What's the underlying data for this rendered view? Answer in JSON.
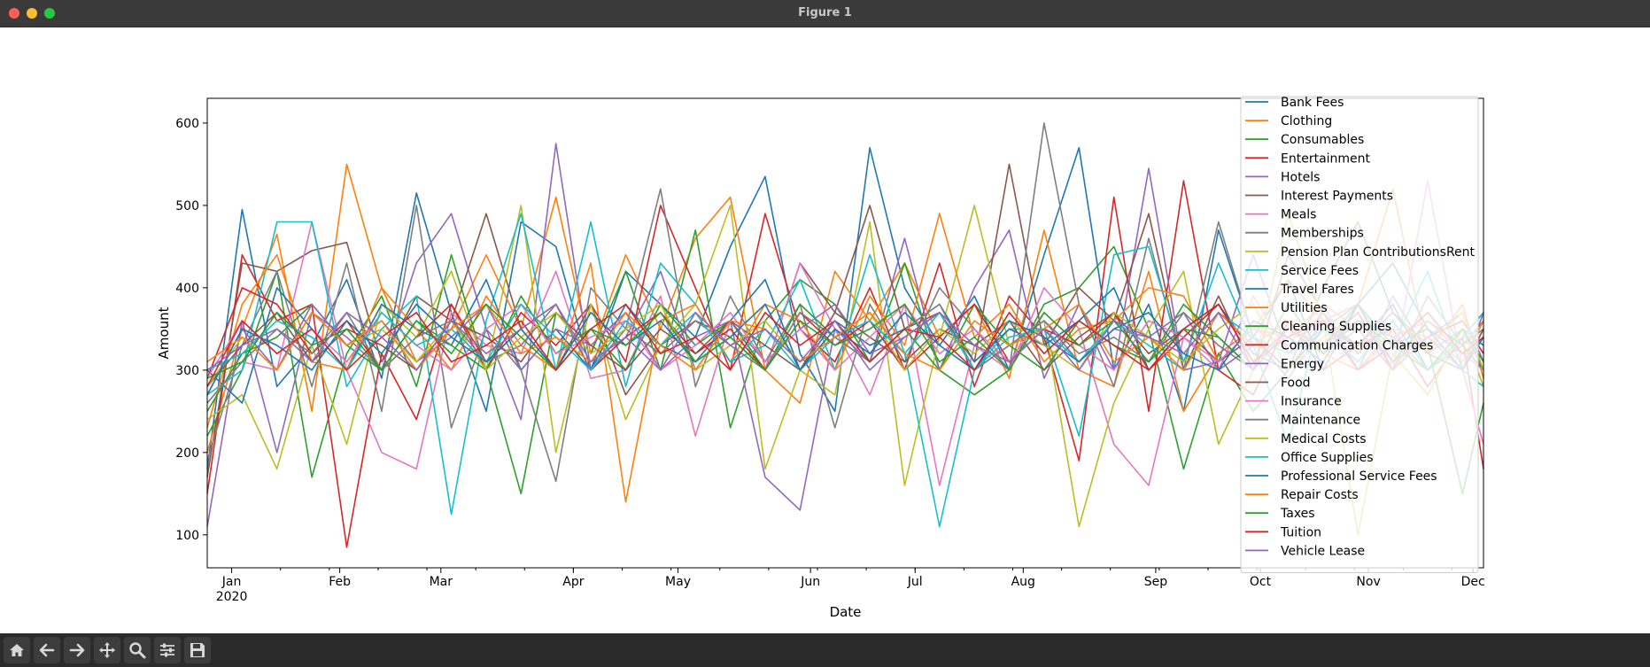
{
  "window": {
    "title": "Figure 1"
  },
  "toolbar": {
    "buttons": [
      {
        "name": "home-button",
        "icon": "home-icon"
      },
      {
        "name": "back-button",
        "icon": "arrow-left-icon"
      },
      {
        "name": "forward-button",
        "icon": "arrow-right-icon"
      },
      {
        "name": "pan-button",
        "icon": "move-icon"
      },
      {
        "name": "zoom-button",
        "icon": "magnifier-icon"
      },
      {
        "name": "configure-subplots-button",
        "icon": "sliders-icon"
      },
      {
        "name": "save-button",
        "icon": "floppy-icon"
      }
    ]
  },
  "chart_data": {
    "type": "line",
    "title": "",
    "xlabel": "Date",
    "ylabel": "Amount",
    "ylim": [
      60,
      630
    ],
    "xlim": [
      "2019-12-29",
      "2020-12-29"
    ],
    "yticks": [
      100,
      200,
      300,
      400,
      500,
      600
    ],
    "xticks": [
      {
        "date": "2020-01-05",
        "label": "Jan",
        "sublabel": "2020"
      },
      {
        "date": "2020-02-05",
        "label": "Feb"
      },
      {
        "date": "2020-03-05",
        "label": "Mar"
      },
      {
        "date": "2020-04-12",
        "label": "Apr"
      },
      {
        "date": "2020-05-12",
        "label": "May"
      },
      {
        "date": "2020-06-19",
        "label": "Jun"
      },
      {
        "date": "2020-07-19",
        "label": "Jul"
      },
      {
        "date": "2020-08-19",
        "label": "Aug"
      },
      {
        "date": "2020-09-26",
        "label": "Sep"
      },
      {
        "date": "2020-10-26",
        "label": "Oct"
      },
      {
        "date": "2020-11-26",
        "label": "Nov"
      },
      {
        "date": "2020-12-26",
        "label": "Dec"
      }
    ],
    "grid": false,
    "legend": "upper right",
    "x": [
      "2019-12-29",
      "2020-01-08",
      "2020-01-18",
      "2020-01-28",
      "2020-02-07",
      "2020-02-17",
      "2020-02-27",
      "2020-03-08",
      "2020-03-18",
      "2020-03-28",
      "2020-04-07",
      "2020-04-17",
      "2020-04-27",
      "2020-05-07",
      "2020-05-17",
      "2020-05-27",
      "2020-06-06",
      "2020-06-16",
      "2020-06-26",
      "2020-07-06",
      "2020-07-16",
      "2020-07-26",
      "2020-08-05",
      "2020-08-15",
      "2020-08-25",
      "2020-09-04",
      "2020-09-14",
      "2020-09-24",
      "2020-10-04",
      "2020-10-14",
      "2020-10-24",
      "2020-11-03",
      "2020-11-13",
      "2020-11-23",
      "2020-12-03",
      "2020-12-13",
      "2020-12-23",
      "2020-12-29"
    ],
    "series": [
      {
        "name": "Bank Fees",
        "color": "#1f77b4",
        "values": [
          180,
          495,
          280,
          330,
          410,
          290,
          515,
          370,
          250,
          480,
          450,
          300,
          420,
          380,
          340,
          450,
          535,
          320,
          250,
          570,
          400,
          330,
          390,
          300,
          440,
          570,
          300,
          380,
          250,
          470,
          340,
          410,
          300,
          380,
          430,
          350,
          320,
          300
        ]
      },
      {
        "name": "Clothing",
        "color": "#ff7f0e",
        "values": [
          200,
          350,
          465,
          250,
          550,
          400,
          310,
          350,
          440,
          350,
          510,
          320,
          440,
          350,
          460,
          510,
          300,
          260,
          420,
          360,
          430,
          340,
          380,
          290,
          470,
          300,
          280,
          420,
          250,
          320,
          350,
          410,
          360,
          380,
          520,
          320,
          380,
          290
        ]
      },
      {
        "name": "Consumables",
        "color": "#2ca02c",
        "values": [
          220,
          300,
          420,
          170,
          320,
          390,
          280,
          440,
          300,
          150,
          370,
          320,
          420,
          300,
          470,
          230,
          360,
          410,
          380,
          310,
          430,
          300,
          270,
          300,
          380,
          400,
          450,
          350,
          180,
          320,
          250,
          300,
          400,
          480,
          370,
          330,
          150,
          260
        ]
      },
      {
        "name": "Entertainment",
        "color": "#d62728",
        "values": [
          150,
          440,
          360,
          380,
          85,
          320,
          240,
          380,
          300,
          370,
          330,
          380,
          310,
          500,
          400,
          300,
          490,
          350,
          310,
          400,
          300,
          430,
          280,
          390,
          340,
          190,
          510,
          250,
          530,
          300,
          270,
          360,
          300,
          330,
          350,
          280,
          340,
          180
        ]
      },
      {
        "name": "Hotels",
        "color": "#9467bd",
        "values": [
          110,
          360,
          200,
          370,
          340,
          300,
          430,
          490,
          350,
          240,
          575,
          300,
          340,
          420,
          300,
          360,
          170,
          130,
          350,
          310,
          460,
          300,
          400,
          470,
          290,
          380,
          300,
          545,
          300,
          310,
          440,
          320,
          370,
          300,
          390,
          320,
          350,
          300
        ]
      },
      {
        "name": "Interest Payments",
        "color": "#8c564b",
        "values": [
          170,
          430,
          420,
          445,
          455,
          310,
          390,
          360,
          490,
          350,
          300,
          380,
          270,
          330,
          360,
          340,
          300,
          430,
          370,
          500,
          350,
          370,
          310,
          550,
          330,
          400,
          360,
          490,
          300,
          390,
          300,
          440,
          370,
          320,
          360,
          300,
          340,
          370
        ]
      },
      {
        "name": "Meals",
        "color": "#e377c2",
        "values": [
          260,
          310,
          300,
          480,
          300,
          200,
          180,
          370,
          330,
          320,
          420,
          290,
          300,
          390,
          220,
          360,
          300,
          430,
          350,
          270,
          380,
          160,
          330,
          300,
          400,
          350,
          210,
          160,
          340,
          300,
          390,
          320,
          360,
          380,
          300,
          530,
          300,
          210
        ]
      },
      {
        "name": "Memberships",
        "color": "#7f7f7f",
        "values": [
          190,
          330,
          420,
          280,
          430,
          250,
          500,
          230,
          350,
          300,
          165,
          400,
          350,
          520,
          280,
          390,
          310,
          380,
          230,
          380,
          310,
          400,
          350,
          300,
          600,
          380,
          280,
          460,
          300,
          480,
          340,
          290,
          350,
          380,
          300,
          390,
          330,
          350
        ]
      },
      {
        "name": "Pension Plan ContributionsRent",
        "color": "#bcbd22",
        "values": [
          240,
          270,
          180,
          330,
          210,
          380,
          340,
          420,
          300,
          500,
          200,
          380,
          240,
          330,
          380,
          500,
          180,
          300,
          270,
          480,
          160,
          340,
          500,
          330,
          360,
          110,
          260,
          350,
          420,
          210,
          300,
          490,
          360,
          100,
          320,
          270,
          350,
          280
        ]
      },
      {
        "name": "Service Fees",
        "color": "#17becf",
        "values": [
          270,
          300,
          480,
          480,
          280,
          350,
          390,
          125,
          360,
          490,
          300,
          480,
          280,
          430,
          380,
          310,
          330,
          410,
          300,
          440,
          320,
          110,
          300,
          350,
          350,
          220,
          440,
          450,
          310,
          430,
          330,
          210,
          380,
          300,
          330,
          420,
          300,
          280
        ]
      },
      {
        "name": "Travel Fares",
        "color": "#1f77b4",
        "values": [
          300,
          260,
          400,
          350,
          300,
          380,
          350,
          330,
          410,
          300,
          350,
          300,
          380,
          330,
          310,
          360,
          410,
          300,
          360,
          330,
          350,
          380,
          310,
          350,
          330,
          360,
          400,
          300,
          350,
          380,
          320,
          300,
          350,
          330,
          380,
          300,
          350,
          330
        ]
      },
      {
        "name": "Utilities",
        "color": "#ff7f0e",
        "values": [
          230,
          380,
          440,
          310,
          300,
          400,
          350,
          300,
          390,
          330,
          300,
          430,
          140,
          360,
          380,
          310,
          380,
          360,
          300,
          390,
          330,
          490,
          340,
          380,
          310,
          350,
          360,
          400,
          390,
          310,
          350,
          340,
          380,
          350,
          300,
          360,
          320,
          340
        ]
      },
      {
        "name": "Cleaning Supplies",
        "color": "#2ca02c",
        "values": [
          250,
          320,
          340,
          380,
          330,
          300,
          360,
          330,
          300,
          390,
          320,
          350,
          300,
          380,
          330,
          360,
          300,
          380,
          340,
          310,
          350,
          300,
          380,
          330,
          300,
          360,
          330,
          310,
          380,
          340,
          300,
          350,
          330,
          380,
          310,
          360,
          330,
          300
        ]
      },
      {
        "name": "Communication Charges",
        "color": "#d62728",
        "values": [
          290,
          400,
          380,
          320,
          360,
          300,
          340,
          380,
          310,
          350,
          380,
          300,
          340,
          370,
          320,
          350,
          300,
          370,
          330,
          360,
          300,
          340,
          380,
          310,
          350,
          330,
          370,
          300,
          340,
          380,
          310,
          350,
          330,
          370,
          300,
          340,
          360,
          320
        ]
      },
      {
        "name": "Energy",
        "color": "#9467bd",
        "values": [
          270,
          350,
          300,
          380,
          330,
          360,
          310,
          340,
          380,
          300,
          350,
          330,
          370,
          300,
          340,
          360,
          310,
          350,
          380,
          320,
          340,
          370,
          300,
          330,
          360,
          310,
          350,
          340,
          370,
          300,
          330,
          360,
          320,
          350,
          300,
          340,
          370,
          310
        ]
      },
      {
        "name": "Food",
        "color": "#8c564b",
        "values": [
          280,
          330,
          370,
          310,
          350,
          330,
          300,
          360,
          340,
          310,
          370,
          330,
          300,
          350,
          320,
          360,
          330,
          300,
          370,
          340,
          310,
          350,
          330,
          360,
          300,
          340,
          370,
          320,
          350,
          310,
          340,
          300,
          360,
          330,
          370,
          320,
          300,
          350
        ]
      },
      {
        "name": "Insurance",
        "color": "#e377c2",
        "values": [
          290,
          360,
          320,
          350,
          310,
          370,
          330,
          300,
          350,
          380,
          320,
          340,
          360,
          300,
          330,
          370,
          310,
          350,
          300,
          340,
          380,
          320,
          350,
          310,
          370,
          330,
          300,
          360,
          340,
          310,
          350,
          330,
          380,
          300,
          340,
          360,
          320,
          300
        ]
      },
      {
        "name": "Maintenance",
        "color": "#7f7f7f",
        "values": [
          260,
          310,
          350,
          320,
          370,
          300,
          340,
          360,
          310,
          330,
          380,
          300,
          350,
          320,
          360,
          330,
          300,
          370,
          340,
          310,
          350,
          380,
          300,
          330,
          360,
          320,
          340,
          310,
          370,
          330,
          300,
          350,
          320,
          360,
          340,
          300,
          330,
          360
        ]
      },
      {
        "name": "Medical Costs",
        "color": "#bcbd22",
        "values": [
          280,
          340,
          300,
          370,
          330,
          350,
          310,
          360,
          300,
          340,
          370,
          320,
          350,
          380,
          300,
          330,
          360,
          310,
          340,
          370,
          300,
          350,
          320,
          360,
          330,
          300,
          370,
          340,
          310,
          350,
          380,
          300,
          340,
          360,
          310,
          330,
          370,
          300
        ]
      },
      {
        "name": "Office Supplies",
        "color": "#17becf",
        "values": [
          300,
          320,
          360,
          340,
          300,
          370,
          330,
          350,
          310,
          380,
          340,
          300,
          360,
          330,
          370,
          310,
          350,
          300,
          340,
          360,
          320,
          370,
          300,
          340,
          350,
          310,
          360,
          330,
          300,
          370,
          340,
          320,
          350,
          310,
          360,
          300,
          340,
          370
        ]
      },
      {
        "name": "Professional Service Fees",
        "color": "#1f77b4",
        "values": [
          270,
          350,
          330,
          300,
          360,
          320,
          380,
          340,
          310,
          350,
          300,
          370,
          330,
          360,
          310,
          340,
          380,
          300,
          350,
          320,
          370,
          330,
          300,
          360,
          340,
          310,
          350,
          370,
          320,
          300,
          360,
          340,
          310,
          380,
          330,
          350,
          300,
          340
        ]
      },
      {
        "name": "Repair Costs",
        "color": "#ff7f0e",
        "values": [
          310,
          340,
          300,
          370,
          330,
          360,
          300,
          350,
          380,
          320,
          340,
          310,
          370,
          330,
          300,
          360,
          350,
          310,
          340,
          370,
          320,
          300,
          360,
          330,
          350,
          380,
          310,
          340,
          300,
          370,
          330,
          360,
          320,
          300,
          350,
          340,
          310,
          360
        ]
      },
      {
        "name": "Taxes",
        "color": "#2ca02c",
        "values": [
          290,
          310,
          370,
          330,
          350,
          300,
          360,
          320,
          380,
          340,
          300,
          350,
          330,
          370,
          310,
          340,
          300,
          360,
          330,
          350,
          380,
          310,
          340,
          300,
          370,
          330,
          360,
          310,
          350,
          340,
          300,
          380,
          320,
          360,
          330,
          300,
          350,
          310
        ]
      },
      {
        "name": "Tuition",
        "color": "#d62728",
        "values": [
          280,
          360,
          320,
          350,
          300,
          340,
          370,
          310,
          330,
          360,
          300,
          350,
          380,
          320,
          340,
          300,
          370,
          330,
          360,
          310,
          350,
          340,
          300,
          370,
          320,
          360,
          330,
          300,
          350,
          380,
          310,
          340,
          360,
          300,
          330,
          370,
          320,
          340
        ]
      },
      {
        "name": "Vehicle Lease",
        "color": "#9467bd",
        "values": [
          300,
          330,
          350,
          310,
          370,
          340,
          300,
          360,
          320,
          350,
          380,
          310,
          340,
          300,
          370,
          330,
          350,
          310,
          360,
          300,
          340,
          370,
          330,
          310,
          350,
          300,
          360,
          340,
          320,
          370,
          300,
          350,
          330,
          360,
          310,
          340,
          300,
          370
        ]
      }
    ]
  }
}
